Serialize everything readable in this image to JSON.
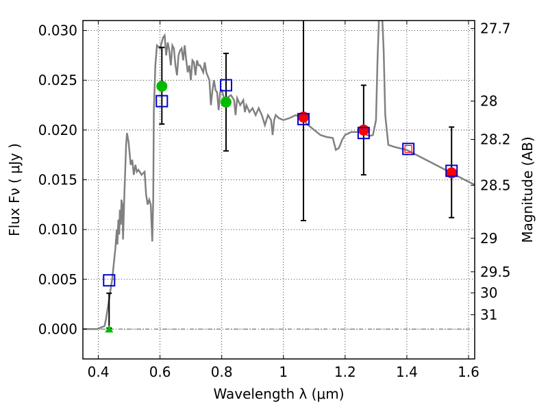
{
  "chart_data": {
    "type": "scatter",
    "xlabel": "Wavelength  λ (μm)",
    "ylabel": "Flux  Fν  ( μJy )",
    "y2label": "Magnitude (AB)",
    "xlim": [
      0.35,
      1.62
    ],
    "ylim": [
      -0.003,
      0.031
    ],
    "grid": true,
    "x_ticks": [
      0.4,
      0.6,
      0.8,
      1.0,
      1.2,
      1.4,
      1.6
    ],
    "x_tick_labels": [
      "0.4",
      "0.6",
      "0.8",
      "1",
      "1.2",
      "1.4",
      "1.6"
    ],
    "y_ticks": [
      0.0,
      0.005,
      0.01,
      0.015,
      0.02,
      0.025,
      0.03
    ],
    "y_tick_labels": [
      "0.000",
      "0.005",
      "0.010",
      "0.015",
      "0.020",
      "0.025",
      "0.030"
    ],
    "y2_ticks": [
      {
        "label": "27.7",
        "mag": 27.7
      },
      {
        "label": "28",
        "mag": 28.0
      },
      {
        "label": "28.2",
        "mag": 28.2
      },
      {
        "label": "28.5",
        "mag": 28.5
      },
      {
        "label": "29",
        "mag": 29.0
      },
      {
        "label": "29.5",
        "mag": 29.5
      },
      {
        "label": "30",
        "mag": 30.0
      },
      {
        "label": "31",
        "mag": 31.0
      }
    ],
    "series": [
      {
        "marker": "triangle",
        "color": "#00bb00",
        "points": [
          {
            "x": 0.435,
            "y": 0.0
          }
        ]
      },
      {
        "marker": "circle",
        "color": "#00bb00",
        "points": [
          {
            "x": 0.606,
            "y": 0.0244
          },
          {
            "x": 0.814,
            "y": 0.0228
          }
        ]
      },
      {
        "marker": "circle",
        "color": "#ff0000",
        "points": [
          {
            "x": 1.065,
            "y": 0.0213
          },
          {
            "x": 1.26,
            "y": 0.02
          },
          {
            "x": 1.545,
            "y": 0.0157
          }
        ]
      },
      {
        "marker": "open-square",
        "color": "#0000cc",
        "points": [
          {
            "x": 0.435,
            "y": 0.0049
          },
          {
            "x": 0.606,
            "y": 0.0229
          },
          {
            "x": 0.814,
            "y": 0.0245
          },
          {
            "x": 1.065,
            "y": 0.0211
          },
          {
            "x": 1.26,
            "y": 0.0197
          },
          {
            "x": 1.405,
            "y": 0.0181
          },
          {
            "x": 1.545,
            "y": 0.0159
          }
        ]
      },
      {
        "marker": "small-open-square",
        "color": "#ff0000",
        "points": [
          {
            "x": 1.405,
            "y": 0.0181
          }
        ]
      }
    ],
    "error_bars": [
      {
        "x": 0.435,
        "low": 0.0001,
        "high": 0.0036
      },
      {
        "x": 0.606,
        "low": 0.0206,
        "high": 0.0283
      },
      {
        "x": 0.814,
        "low": 0.0179,
        "high": 0.0277
      },
      {
        "x": 1.065,
        "low": 0.0109,
        "high": 0.0315
      },
      {
        "x": 1.26,
        "low": 0.0155,
        "high": 0.0245
      },
      {
        "x": 1.545,
        "low": 0.0112,
        "high": 0.0203
      }
    ],
    "model_sed": {
      "color": "#808080",
      "points": [
        [
          0.35,
          0.0
        ],
        [
          0.395,
          0.0
        ],
        [
          0.42,
          0.0003
        ],
        [
          0.425,
          0.001
        ],
        [
          0.43,
          0.002
        ],
        [
          0.435,
          0.003
        ],
        [
          0.44,
          0.004
        ],
        [
          0.445,
          0.005
        ],
        [
          0.45,
          0.0065
        ],
        [
          0.455,
          0.008
        ],
        [
          0.46,
          0.01
        ],
        [
          0.462,
          0.0085
        ],
        [
          0.465,
          0.011
        ],
        [
          0.468,
          0.0095
        ],
        [
          0.47,
          0.012
        ],
        [
          0.473,
          0.0105
        ],
        [
          0.475,
          0.013
        ],
        [
          0.478,
          0.0125
        ],
        [
          0.48,
          0.009
        ],
        [
          0.485,
          0.014
        ],
        [
          0.49,
          0.0185
        ],
        [
          0.493,
          0.0197
        ],
        [
          0.498,
          0.0188
        ],
        [
          0.505,
          0.0165
        ],
        [
          0.51,
          0.017
        ],
        [
          0.515,
          0.0155
        ],
        [
          0.52,
          0.0165
        ],
        [
          0.525,
          0.0158
        ],
        [
          0.53,
          0.016
        ],
        [
          0.54,
          0.0155
        ],
        [
          0.55,
          0.0158
        ],
        [
          0.555,
          0.0135
        ],
        [
          0.56,
          0.0125
        ],
        [
          0.565,
          0.013
        ],
        [
          0.57,
          0.0125
        ],
        [
          0.575,
          0.0088
        ],
        [
          0.578,
          0.013
        ],
        [
          0.58,
          0.022
        ],
        [
          0.585,
          0.0265
        ],
        [
          0.59,
          0.0285
        ],
        [
          0.6,
          0.0282
        ],
        [
          0.61,
          0.0293
        ],
        [
          0.615,
          0.0295
        ],
        [
          0.62,
          0.0275
        ],
        [
          0.625,
          0.0288
        ],
        [
          0.63,
          0.028
        ],
        [
          0.635,
          0.0265
        ],
        [
          0.64,
          0.0285
        ],
        [
          0.645,
          0.0282
        ],
        [
          0.65,
          0.0265
        ],
        [
          0.655,
          0.0255
        ],
        [
          0.66,
          0.0275
        ],
        [
          0.665,
          0.028
        ],
        [
          0.67,
          0.0282
        ],
        [
          0.675,
          0.027
        ],
        [
          0.68,
          0.0285
        ],
        [
          0.685,
          0.027
        ],
        [
          0.69,
          0.0258
        ],
        [
          0.695,
          0.0265
        ],
        [
          0.7,
          0.025
        ],
        [
          0.705,
          0.027
        ],
        [
          0.71,
          0.0268
        ],
        [
          0.715,
          0.0255
        ],
        [
          0.72,
          0.027
        ],
        [
          0.725,
          0.0265
        ],
        [
          0.73,
          0.0265
        ],
        [
          0.74,
          0.0258
        ],
        [
          0.745,
          0.0268
        ],
        [
          0.75,
          0.0258
        ],
        [
          0.76,
          0.025
        ],
        [
          0.765,
          0.0225
        ],
        [
          0.77,
          0.024
        ],
        [
          0.775,
          0.025
        ],
        [
          0.78,
          0.024
        ],
        [
          0.785,
          0.0238
        ],
        [
          0.79,
          0.022
        ],
        [
          0.795,
          0.0238
        ],
        [
          0.8,
          0.024
        ],
        [
          0.81,
          0.023
        ],
        [
          0.82,
          0.0233
        ],
        [
          0.83,
          0.0235
        ],
        [
          0.84,
          0.023
        ],
        [
          0.845,
          0.0215
        ],
        [
          0.85,
          0.0232
        ],
        [
          0.86,
          0.0225
        ],
        [
          0.87,
          0.023
        ],
        [
          0.875,
          0.0218
        ],
        [
          0.88,
          0.0225
        ],
        [
          0.89,
          0.0218
        ],
        [
          0.9,
          0.0222
        ],
        [
          0.91,
          0.0215
        ],
        [
          0.92,
          0.0222
        ],
        [
          0.93,
          0.0215
        ],
        [
          0.94,
          0.0205
        ],
        [
          0.95,
          0.0215
        ],
        [
          0.96,
          0.021
        ],
        [
          0.965,
          0.0195
        ],
        [
          0.97,
          0.021
        ],
        [
          0.975,
          0.0215
        ],
        [
          0.985,
          0.0212
        ],
        [
          1.0,
          0.021
        ],
        [
          1.02,
          0.0212
        ],
        [
          1.04,
          0.0215
        ],
        [
          1.06,
          0.0212
        ],
        [
          1.08,
          0.0205
        ],
        [
          1.1,
          0.02
        ],
        [
          1.12,
          0.0195
        ],
        [
          1.14,
          0.0193
        ],
        [
          1.16,
          0.0192
        ],
        [
          1.17,
          0.018
        ],
        [
          1.18,
          0.0182
        ],
        [
          1.19,
          0.019
        ],
        [
          1.2,
          0.0195
        ],
        [
          1.22,
          0.0198
        ],
        [
          1.24,
          0.0198
        ],
        [
          1.26,
          0.0197
        ],
        [
          1.27,
          0.0195
        ],
        [
          1.28,
          0.0194
        ],
        [
          1.29,
          0.0195
        ],
        [
          1.3,
          0.021
        ],
        [
          1.305,
          0.027
        ],
        [
          1.31,
          0.0315
        ],
        [
          1.32,
          0.0315
        ],
        [
          1.325,
          0.028
        ],
        [
          1.33,
          0.0215
        ],
        [
          1.34,
          0.0185
        ],
        [
          1.36,
          0.0183
        ],
        [
          1.4,
          0.018
        ],
        [
          1.45,
          0.0172
        ],
        [
          1.5,
          0.0164
        ],
        [
          1.55,
          0.0156
        ],
        [
          1.6,
          0.0148
        ],
        [
          1.62,
          0.0145
        ]
      ]
    }
  }
}
